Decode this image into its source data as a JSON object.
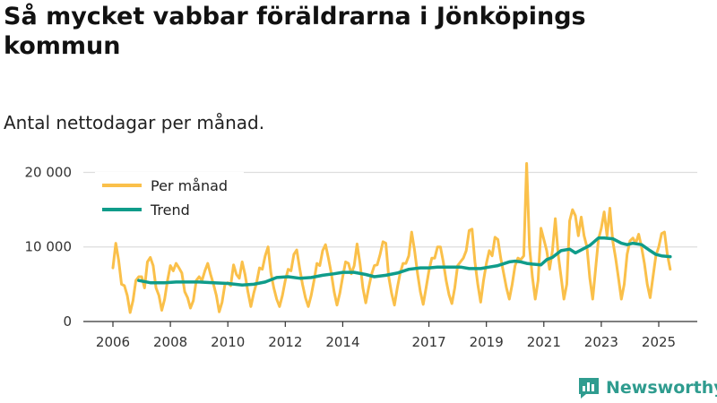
{
  "title": "Så mycket vabbar föräldrarna i Jönköpings kommun",
  "subtitle": "Antal nettodagar per månad.",
  "brand": "Newsworthy",
  "colors": {
    "monthly": "#fac04a",
    "trend": "#0f9c8a",
    "grid": "#dddddd"
  },
  "chart_data": {
    "type": "line",
    "title": "Så mycket vabbar föräldrarna i Jönköpings kommun",
    "subtitle": "Antal nettodagar per månad.",
    "xlabel": "",
    "ylabel": "",
    "xlim": [
      2006,
      2025.75
    ],
    "ylim": [
      0,
      21500
    ],
    "y_ticks": [
      0,
      10000,
      20000
    ],
    "y_tick_labels": [
      "0",
      "10 000",
      "20 000"
    ],
    "x_ticks": [
      2006,
      2008,
      2010,
      2012,
      2014,
      2017,
      2019,
      2021,
      2023,
      2025
    ],
    "x_tick_labels": [
      "2006",
      "2008",
      "2010",
      "2012",
      "2014",
      "2017",
      "2019",
      "2021",
      "2023",
      "2025"
    ],
    "grid": "horizontal",
    "legend_position": "top-left",
    "series": [
      {
        "name": "Per månad",
        "x": [
          2006.0,
          2006.1,
          2006.2,
          2006.3,
          2006.4,
          2006.5,
          2006.6,
          2006.7,
          2006.8,
          2006.9,
          2007.0,
          2007.1,
          2007.2,
          2007.3,
          2007.4,
          2007.5,
          2007.6,
          2007.7,
          2007.8,
          2007.9,
          2008.0,
          2008.1,
          2008.2,
          2008.3,
          2008.4,
          2008.5,
          2008.6,
          2008.7,
          2008.8,
          2008.9,
          2009.0,
          2009.1,
          2009.2,
          2009.3,
          2009.4,
          2009.5,
          2009.6,
          2009.7,
          2009.8,
          2009.9,
          2010.0,
          2010.1,
          2010.2,
          2010.3,
          2010.4,
          2010.5,
          2010.6,
          2010.7,
          2010.8,
          2010.9,
          2011.0,
          2011.1,
          2011.2,
          2011.3,
          2011.4,
          2011.5,
          2011.6,
          2011.7,
          2011.8,
          2011.9,
          2012.0,
          2012.1,
          2012.2,
          2012.3,
          2012.4,
          2012.5,
          2012.6,
          2012.7,
          2012.8,
          2012.9,
          2013.0,
          2013.1,
          2013.2,
          2013.3,
          2013.4,
          2013.5,
          2013.6,
          2013.7,
          2013.8,
          2013.9,
          2014.0,
          2014.1,
          2014.2,
          2014.3,
          2014.4,
          2014.5,
          2014.6,
          2014.7,
          2014.8,
          2014.9,
          2015.0,
          2015.1,
          2015.2,
          2015.3,
          2015.4,
          2015.5,
          2015.6,
          2015.7,
          2015.8,
          2015.9,
          2016.0,
          2016.1,
          2016.2,
          2016.3,
          2016.4,
          2016.5,
          2016.6,
          2016.7,
          2016.8,
          2016.9,
          2017.0,
          2017.1,
          2017.2,
          2017.3,
          2017.4,
          2017.5,
          2017.6,
          2017.7,
          2017.8,
          2017.9,
          2018.0,
          2018.1,
          2018.2,
          2018.3,
          2018.4,
          2018.5,
          2018.6,
          2018.7,
          2018.8,
          2018.9,
          2019.0,
          2019.1,
          2019.2,
          2019.3,
          2019.4,
          2019.5,
          2019.6,
          2019.7,
          2019.8,
          2019.9,
          2020.0,
          2020.1,
          2020.2,
          2020.3,
          2020.4,
          2020.5,
          2020.6,
          2020.7,
          2020.8,
          2020.9,
          2021.0,
          2021.1,
          2021.2,
          2021.3,
          2021.4,
          2021.5,
          2021.6,
          2021.7,
          2021.8,
          2021.9,
          2022.0,
          2022.1,
          2022.2,
          2022.3,
          2022.4,
          2022.5,
          2022.6,
          2022.7,
          2022.8,
          2022.9,
          2023.0,
          2023.1,
          2023.2,
          2023.3,
          2023.4,
          2023.5,
          2023.6,
          2023.7,
          2023.8,
          2023.9,
          2024.0,
          2024.1,
          2024.2,
          2024.3,
          2024.4,
          2024.5,
          2024.6,
          2024.7,
          2024.8,
          2024.9,
          2025.0,
          2025.1,
          2025.2,
          2025.3,
          2025.4
        ],
        "values": [
          7200,
          10500,
          8200,
          5000,
          4800,
          3500,
          1200,
          2800,
          5500,
          6000,
          6000,
          4500,
          8000,
          8600,
          7500,
          4500,
          3500,
          1500,
          3000,
          5500,
          7500,
          6800,
          7800,
          7200,
          6500,
          4000,
          3200,
          1800,
          2800,
          5500,
          6000,
          5500,
          6800,
          7800,
          6300,
          5000,
          3500,
          1300,
          2600,
          5000,
          5200,
          4800,
          7600,
          6300,
          5800,
          8000,
          6300,
          4000,
          2000,
          3800,
          5200,
          7200,
          7000,
          8800,
          10000,
          6500,
          4500,
          3000,
          2000,
          3500,
          5500,
          7000,
          6800,
          9000,
          9600,
          7200,
          5000,
          3200,
          2000,
          3500,
          5500,
          7800,
          7500,
          9500,
          10300,
          8500,
          6500,
          4000,
          2200,
          3800,
          6000,
          8000,
          7800,
          6400,
          7500,
          10400,
          7800,
          4500,
          2500,
          4500,
          6300,
          7500,
          7600,
          9000,
          10700,
          10500,
          6000,
          3800,
          2200,
          4500,
          6500,
          7800,
          7800,
          8800,
          12000,
          9500,
          6500,
          4000,
          2300,
          4500,
          6800,
          8500,
          8500,
          10000,
          10000,
          8000,
          5500,
          3600,
          2400,
          4500,
          7500,
          8000,
          8500,
          9500,
          12200,
          12400,
          8000,
          5000,
          2600,
          5500,
          7800,
          9500,
          8800,
          11300,
          11000,
          8500,
          6500,
          4500,
          3000,
          5000,
          7500,
          8500,
          8300,
          8800,
          21200,
          10000,
          6000,
          3000,
          5500,
          12500,
          11000,
          9500,
          7000,
          9500,
          13800,
          9000,
          6000,
          3000,
          5000,
          13500,
          15000,
          14200,
          11500,
          14000,
          11500,
          10000,
          5800,
          3000,
          7000,
          11000,
          12500,
          14700,
          11500,
          15200,
          10800,
          8500,
          5800,
          3000,
          5000,
          9000,
          10800,
          11200,
          10500,
          11700,
          10000,
          7800,
          5000,
          3200,
          6000,
          8800,
          10000,
          11800,
          12000,
          9000,
          7000
        ]
      },
      {
        "name": "Trend",
        "x": [
          2006.9,
          2007.3,
          2007.8,
          2008.2,
          2008.6,
          2009.0,
          2009.5,
          2010.0,
          2010.5,
          2010.9,
          2011.3,
          2011.7,
          2012.1,
          2012.5,
          2012.9,
          2013.3,
          2013.7,
          2014.0,
          2014.4,
          2014.8,
          2015.1,
          2015.5,
          2015.9,
          2016.3,
          2016.7,
          2017.0,
          2017.3,
          2017.7,
          2018.1,
          2018.4,
          2018.8,
          2019.1,
          2019.4,
          2019.8,
          2020.0,
          2020.2,
          2020.4,
          2020.6,
          2020.9,
          2021.1,
          2021.3,
          2021.6,
          2021.9,
          2022.1,
          2022.3,
          2022.6,
          2022.9,
          2023.1,
          2023.4,
          2023.7,
          2023.9,
          2024.1,
          2024.4,
          2024.7,
          2024.9,
          2025.1,
          2025.4
        ],
        "values": [
          5500,
          5200,
          5200,
          5300,
          5300,
          5300,
          5200,
          5100,
          4900,
          5000,
          5300,
          5900,
          6000,
          5800,
          5900,
          6200,
          6400,
          6600,
          6600,
          6300,
          6000,
          6200,
          6500,
          7000,
          7200,
          7200,
          7300,
          7300,
          7300,
          7100,
          7100,
          7300,
          7500,
          8000,
          8100,
          8000,
          7800,
          7700,
          7600,
          8300,
          8600,
          9500,
          9700,
          9200,
          9600,
          10200,
          11200,
          11200,
          11100,
          10500,
          10300,
          10500,
          10300,
          9500,
          9000,
          8800,
          8700
        ]
      }
    ]
  }
}
